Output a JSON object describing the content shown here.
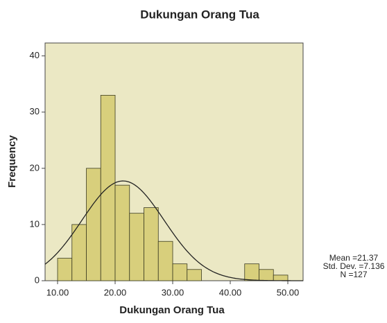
{
  "chart_data": {
    "type": "histogram",
    "title": "Dukungan Orang Tua",
    "x_label": "Dukungan Orang Tua",
    "y_label": "Frequency",
    "bins": [
      10,
      12.5,
      15,
      17.5,
      20,
      22.5,
      25,
      27.5,
      30,
      32.5,
      35,
      37.5,
      40,
      42.5,
      45,
      47.5,
      50
    ],
    "values": [
      4,
      10,
      20,
      33,
      17,
      12,
      13,
      7,
      3,
      2,
      0,
      0,
      0,
      3,
      2,
      1
    ],
    "color": "#d8cf7c",
    "edge_color": "#3a3a20",
    "plot_background": "#ebe8c4",
    "curve_color": "#222222",
    "xlim": [
      7.83,
      52.65
    ],
    "ylim": [
      0,
      42.3
    ],
    "xticks": [
      {
        "value": 10,
        "label": "10.00"
      },
      {
        "value": 20,
        "label": "20.00"
      },
      {
        "value": 30,
        "label": "30.00"
      },
      {
        "value": 40,
        "label": "40.00"
      },
      {
        "value": 50,
        "label": "50.00"
      }
    ],
    "yticks": [
      0,
      10,
      20,
      30,
      40
    ],
    "stats": [
      {
        "value": 21.37,
        "label": "Mean =21.37"
      },
      {
        "value": 7.136,
        "label": "Std. Dev. =7.136"
      },
      {
        "value": 127,
        "label": "N =127"
      }
    ]
  }
}
